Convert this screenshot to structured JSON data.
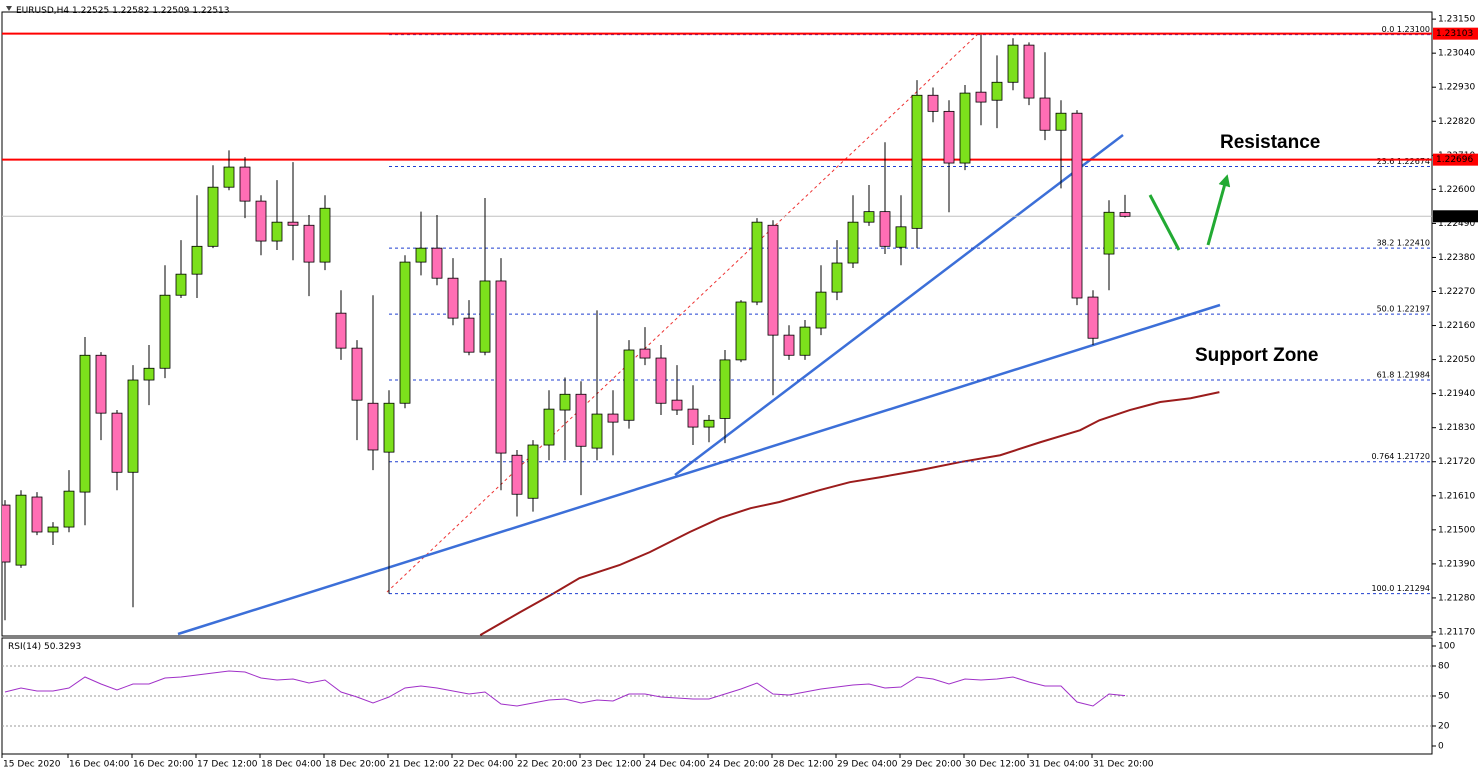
{
  "chart_data": [
    {
      "type": "candlestick",
      "symbol": "EURUSD,H4",
      "categories": [
        "15 Dec 2020",
        null,
        null,
        null,
        "16 Dec 04:00",
        null,
        null,
        null,
        "16 Dec 20:00",
        null,
        null,
        null,
        "17 Dec 12:00",
        null,
        null,
        null,
        "18 Dec 04:00",
        null,
        null,
        null,
        "18 Dec 20:00",
        null,
        null,
        null,
        "21 Dec 12:00",
        null,
        null,
        null,
        "22 Dec 04:00",
        null,
        null,
        null,
        "22 Dec 20:00",
        null,
        null,
        null,
        "23 Dec 12:00",
        null,
        null,
        null,
        "24 Dec 04:00",
        null,
        null,
        null,
        "24 Dec 20:00",
        null,
        null,
        null,
        "28 Dec 12:00",
        null,
        null,
        null,
        "29 Dec 04:00",
        null,
        null,
        null,
        "29 Dec 20:00",
        null,
        null,
        null,
        "30 Dec 12:00",
        null,
        null,
        null,
        "31 Dec 04:00",
        null,
        null,
        null,
        "31 Dec 20:00",
        null,
        null
      ],
      "opens": [
        1.2158,
        1.21386,
        1.21606,
        1.21493,
        1.21509,
        1.21622,
        1.22064,
        1.21877,
        1.21686,
        1.21984,
        1.22022,
        1.22258,
        1.22326,
        1.22416,
        1.22607,
        1.22672,
        1.22562,
        1.22433,
        1.22494,
        1.22484,
        1.22365,
        1.222,
        1.22087,
        1.21909,
        1.21751,
        1.21909,
        1.22365,
        1.2241,
        1.22313,
        1.22184,
        1.22074,
        1.22304,
        1.21741,
        1.21602,
        1.21774,
        1.21887,
        1.21938,
        1.21764,
        1.21874,
        1.21854,
        1.22084,
        1.22055,
        1.21919,
        1.2189,
        1.21832,
        1.2186,
        1.22049,
        1.22236,
        1.22484,
        1.22129,
        1.22064,
        1.22152,
        1.22268,
        1.22362,
        1.22494,
        1.22528,
        1.22413,
        1.22474,
        1.22904,
        1.22852,
        1.22685,
        1.22914,
        1.22888,
        1.22946,
        1.23066,
        1.22895,
        1.22791,
        1.22846,
        1.22252,
        1.22391,
        1.22525
      ],
      "highs": [
        1.21596,
        1.21628,
        1.21622,
        1.21525,
        1.21693,
        1.22123,
        1.22074,
        1.21887,
        1.22032,
        1.22097,
        1.22355,
        1.22436,
        1.22581,
        1.22678,
        1.22726,
        1.22704,
        1.22581,
        1.2263,
        1.22688,
        1.22517,
        1.22581,
        1.22274,
        1.22113,
        1.22258,
        1.21951,
        1.22387,
        1.22528,
        1.22517,
        1.22378,
        1.22242,
        1.22572,
        1.22378,
        1.21758,
        1.2179,
        1.21951,
        1.21992,
        1.2198,
        1.22209,
        1.21951,
        1.22113,
        1.22155,
        1.22097,
        1.22032,
        1.21967,
        1.21871,
        1.22081,
        1.22242,
        1.22507,
        1.225,
        1.22161,
        1.22178,
        1.22355,
        1.22436,
        1.22581,
        1.22614,
        1.22752,
        1.22581,
        1.22953,
        1.22929,
        1.22888,
        1.22937,
        1.231,
        1.23033,
        1.23088,
        1.23075,
        1.23043,
        1.22888,
        1.22856,
        1.22274,
        1.22565,
        1.22582
      ],
      "lows": [
        1.21208,
        1.21377,
        1.21483,
        1.21451,
        1.21492,
        1.21515,
        1.2179,
        1.21628,
        1.2125,
        1.21903,
        1.2199,
        1.22249,
        1.22249,
        1.2241,
        1.22597,
        1.22507,
        1.22387,
        1.22404,
        1.22371,
        1.22255,
        1.22339,
        1.22049,
        1.2179,
        1.21693,
        1.21294,
        1.21893,
        1.22322,
        1.2229,
        1.22161,
        1.22064,
        1.22064,
        1.21628,
        1.21543,
        1.21559,
        1.21725,
        1.21725,
        1.21612,
        1.21725,
        1.21741,
        1.21827,
        1.22032,
        1.21871,
        1.21871,
        1.21774,
        1.21783,
        1.2178,
        1.22042,
        1.22226,
        1.21935,
        1.22049,
        1.22049,
        1.22129,
        1.22242,
        1.22346,
        1.22482,
        1.22391,
        1.22355,
        1.2241,
        1.22817,
        1.22526,
        1.22662,
        1.22807,
        1.22798,
        1.2292,
        1.22872,
        1.22759,
        1.22603,
        1.22226,
        1.22097,
        1.22274,
        1.22509
      ],
      "closes": [
        1.21396,
        1.21612,
        1.21493,
        1.21509,
        1.21625,
        1.22064,
        1.21877,
        1.21686,
        1.21984,
        1.22022,
        1.22258,
        1.22326,
        1.22416,
        1.22607,
        1.22672,
        1.22562,
        1.22433,
        1.22494,
        1.22484,
        1.22365,
        1.22539,
        1.22087,
        1.21919,
        1.21758,
        1.21909,
        1.22365,
        1.2241,
        1.22313,
        1.22184,
        1.22074,
        1.22304,
        1.21748,
        1.21615,
        1.21774,
        1.2189,
        1.21938,
        1.2177,
        1.21874,
        1.21848,
        1.22081,
        1.22055,
        1.21909,
        1.21887,
        1.21832,
        1.21854,
        1.22049,
        1.22236,
        1.22494,
        1.22129,
        1.22064,
        1.22155,
        1.22268,
        1.22362,
        1.22494,
        1.22528,
        1.22416,
        1.22479,
        1.22904,
        1.22852,
        1.22685,
        1.22911,
        1.22882,
        1.22946,
        1.23066,
        1.22895,
        1.22791,
        1.22846,
        1.22249,
        1.22119,
        1.22526,
        1.22513
      ],
      "up_color": "#7ce01c",
      "down_color": "#ff6eb4",
      "ylim": [
        1.21157,
        1.23173
      ],
      "yticks": [
        {
          "value": 1.2117,
          "label": "1.21170"
        },
        {
          "value": 1.2128,
          "label": "1.21280"
        },
        {
          "value": 1.2139,
          "label": "1.21390"
        },
        {
          "value": 1.215,
          "label": "1.21500"
        },
        {
          "value": 1.2161,
          "label": "1.21610"
        },
        {
          "value": 1.2172,
          "label": "1.21720"
        },
        {
          "value": 1.2183,
          "label": "1.21830"
        },
        {
          "value": 1.2194,
          "label": "1.21940"
        },
        {
          "value": 1.2205,
          "label": "1.22050"
        },
        {
          "value": 1.2216,
          "label": "1.22160"
        },
        {
          "value": 1.2227,
          "label": "1.22270"
        },
        {
          "value": 1.2238,
          "label": "1.22380"
        },
        {
          "value": 1.2249,
          "label": "1.22490"
        },
        {
          "value": 1.226,
          "label": "1.22600"
        },
        {
          "value": 1.2271,
          "label": "1.22710"
        },
        {
          "value": 1.2282,
          "label": "1.22820"
        },
        {
          "value": 1.2293,
          "label": "1.22930"
        },
        {
          "value": 1.2304,
          "label": "1.23040"
        },
        {
          "value": 1.2315,
          "label": "1.23150"
        }
      ],
      "grid": false,
      "price_lines": [
        {
          "value": 1.23103,
          "color": "#ff0000"
        },
        {
          "value": 1.22696,
          "color": "#ff0000"
        }
      ],
      "fib_levels": [
        {
          "label": "0.0 1.23100",
          "value": 1.231
        },
        {
          "label": "23.6 1.22674",
          "value": 1.22674
        },
        {
          "label": "38.2 1.22410",
          "value": 1.2241
        },
        {
          "label": "50.0 1.22197",
          "value": 1.22197
        },
        {
          "label": "61.8 1.21984",
          "value": 1.21984
        },
        {
          "label": "0.764 1.21720",
          "value": 1.2172
        },
        {
          "label": "100.0 1.21294",
          "value": 1.21294
        }
      ],
      "fib_color": "#1f3fd0",
      "moving_average": {
        "color": "#9b1c1c",
        "x": [
          29.7,
          32.2,
          34.1,
          35.9,
          38.4,
          40.3,
          42.8,
          44.7,
          46.6,
          48.4,
          50.9,
          52.8,
          54.7,
          57.2,
          59.7,
          62.2,
          64.7,
          67.2,
          68.4,
          70.3,
          72.2,
          74.1,
          75.9
        ],
        "values": [
          1.2116,
          1.21234,
          1.21289,
          1.21344,
          1.21386,
          1.21428,
          1.21493,
          1.21538,
          1.2157,
          1.2159,
          1.21628,
          1.21654,
          1.2167,
          1.21693,
          1.21719,
          1.21741,
          1.21783,
          1.21822,
          1.21854,
          1.21887,
          1.21913,
          1.21925,
          1.21945
        ]
      },
      "annotations": [
        {
          "text": "Resistance",
          "color": "#e3261f"
        },
        {
          "text": "Support Zone",
          "color": "#2aa84a"
        }
      ]
    },
    {
      "type": "line",
      "title": "RSI(14)",
      "values": [
        54,
        58,
        55,
        55,
        58,
        69,
        62,
        56,
        62,
        62,
        68,
        69,
        71,
        73,
        75,
        74,
        68,
        66,
        67,
        63,
        66,
        54,
        49,
        43,
        49,
        58,
        60,
        58,
        55,
        52,
        54,
        42,
        40,
        43,
        46,
        47,
        43,
        46,
        45,
        52,
        52,
        49,
        48,
        47,
        47,
        52,
        57,
        63,
        52,
        51,
        54,
        57,
        59,
        61,
        62,
        58,
        59,
        69,
        67,
        62,
        67,
        66,
        67,
        69,
        64,
        60,
        60,
        44,
        40,
        52,
        50.3293
      ],
      "color": "#a030c8",
      "ylim": [
        0,
        100
      ],
      "yticks": [
        0,
        20,
        50,
        80,
        100
      ],
      "levels": [
        20,
        50,
        80
      ]
    }
  ]
}
